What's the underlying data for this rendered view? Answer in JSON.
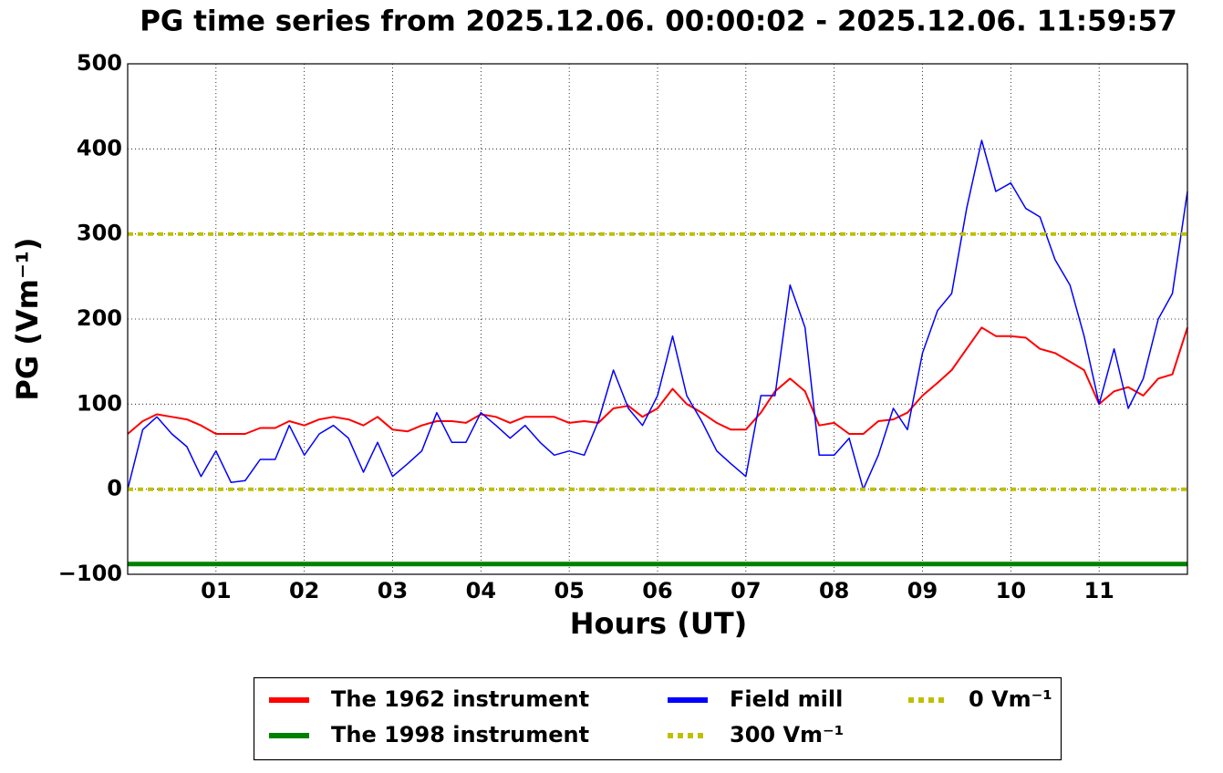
{
  "chart_data": {
    "type": "line",
    "title": "PG time series from 2025.12.06. 00:00:02 - 2025.12.06. 11:59:57",
    "x_label": "Hours (UT)",
    "y_label": "PG (Vm⁻¹)",
    "xlim": [
      0,
      12
    ],
    "xticks": [
      {
        "value": 1,
        "label": "01"
      },
      {
        "value": 2,
        "label": "02"
      },
      {
        "value": 3,
        "label": "03"
      },
      {
        "value": 4,
        "label": "04"
      },
      {
        "value": 5,
        "label": "05"
      },
      {
        "value": 6,
        "label": "06"
      },
      {
        "value": 7,
        "label": "07"
      },
      {
        "value": 8,
        "label": "08"
      },
      {
        "value": 9,
        "label": "09"
      },
      {
        "value": 10,
        "label": "10"
      },
      {
        "value": 11,
        "label": "11"
      }
    ],
    "ylim": [
      -100,
      500
    ],
    "yticks": [
      {
        "value": -100,
        "label": "−100"
      },
      0,
      100,
      200,
      300,
      400,
      500
    ],
    "grid": true,
    "legend": "bottom",
    "series": [
      {
        "name": "The 1962 instrument",
        "color": "#ff0000",
        "width": 2,
        "x": [
          0,
          0.17,
          0.33,
          0.5,
          0.67,
          0.83,
          1,
          1.17,
          1.33,
          1.5,
          1.67,
          1.83,
          2,
          2.17,
          2.33,
          2.5,
          2.67,
          2.83,
          3,
          3.17,
          3.33,
          3.5,
          3.67,
          3.83,
          4,
          4.17,
          4.33,
          4.5,
          4.67,
          4.83,
          5,
          5.17,
          5.33,
          5.5,
          5.67,
          5.83,
          6,
          6.17,
          6.33,
          6.5,
          6.67,
          6.83,
          7,
          7.17,
          7.33,
          7.5,
          7.67,
          7.83,
          8,
          8.17,
          8.33,
          8.5,
          8.67,
          8.83,
          9,
          9.17,
          9.33,
          9.5,
          9.67,
          9.83,
          10,
          10.17,
          10.33,
          10.5,
          10.67,
          10.83,
          11,
          11.17,
          11.33,
          11.5,
          11.67,
          11.83,
          12
        ],
        "values": [
          65,
          80,
          88,
          85,
          82,
          75,
          65,
          65,
          65,
          72,
          72,
          80,
          75,
          82,
          85,
          82,
          75,
          85,
          70,
          68,
          75,
          80,
          80,
          78,
          88,
          85,
          78,
          85,
          85,
          85,
          78,
          80,
          78,
          95,
          98,
          85,
          95,
          118,
          100,
          90,
          78,
          70,
          70,
          90,
          115,
          130,
          115,
          75,
          78,
          65,
          65,
          80,
          82,
          90,
          110,
          125,
          140,
          165,
          190,
          180,
          180,
          178,
          165,
          160,
          150,
          140,
          100,
          115,
          120,
          110,
          130,
          135,
          190
        ]
      },
      {
        "name": "The 1998 instrument",
        "color": "#008000",
        "width": 5,
        "x": [
          0,
          12
        ],
        "values": [
          -88,
          -88
        ]
      },
      {
        "name": "Field mill",
        "color": "#0000ff",
        "width": 1.5,
        "x": [
          0,
          0.17,
          0.33,
          0.5,
          0.67,
          0.83,
          1,
          1.17,
          1.33,
          1.5,
          1.67,
          1.83,
          2,
          2.17,
          2.33,
          2.5,
          2.67,
          2.83,
          3,
          3.17,
          3.33,
          3.5,
          3.67,
          3.83,
          4,
          4.17,
          4.33,
          4.5,
          4.67,
          4.83,
          5,
          5.17,
          5.33,
          5.5,
          5.67,
          5.83,
          6,
          6.17,
          6.33,
          6.5,
          6.67,
          6.83,
          7,
          7.17,
          7.33,
          7.5,
          7.67,
          7.83,
          8,
          8.17,
          8.33,
          8.5,
          8.67,
          8.83,
          9,
          9.17,
          9.33,
          9.5,
          9.67,
          9.83,
          10,
          10.17,
          10.33,
          10.5,
          10.67,
          10.83,
          11,
          11.17,
          11.33,
          11.5,
          11.67,
          11.83,
          12
        ],
        "values": [
          0,
          70,
          85,
          65,
          50,
          15,
          45,
          8,
          10,
          35,
          35,
          75,
          40,
          65,
          75,
          60,
          20,
          55,
          15,
          30,
          45,
          90,
          55,
          55,
          90,
          75,
          60,
          75,
          55,
          40,
          45,
          40,
          80,
          140,
          95,
          75,
          110,
          180,
          110,
          80,
          45,
          30,
          15,
          110,
          110,
          240,
          190,
          40,
          40,
          60,
          0,
          40,
          95,
          70,
          160,
          210,
          230,
          330,
          410,
          350,
          360,
          330,
          320,
          270,
          240,
          180,
          100,
          165,
          95,
          130,
          200,
          230,
          350
        ]
      },
      {
        "name": "300 Vm⁻¹",
        "color": "#bfbf00",
        "width": 4,
        "dashed": true,
        "x": [
          0,
          12
        ],
        "values": [
          300,
          300
        ]
      },
      {
        "name": "0 Vm⁻¹",
        "color": "#bfbf00",
        "width": 4,
        "dashed": true,
        "x": [
          0,
          12
        ],
        "values": [
          0,
          0
        ]
      }
    ]
  }
}
